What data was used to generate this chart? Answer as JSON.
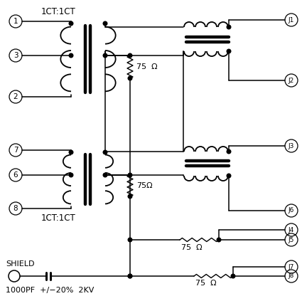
{
  "background_color": "#ffffff",
  "ct_label_top": "1CT:1CT",
  "ct_label_bottom": "1CT:1CT",
  "resistor_label": "75  Ω",
  "resistor_label2": "75Ω",
  "shield_label": "SHIELD",
  "cap_label": "1000PF  +/−20%  2KV",
  "pins_left": [
    "1",
    "3",
    "2",
    "7",
    "6",
    "8"
  ],
  "pins_right": [
    "J1",
    "J2",
    "J3",
    "J4",
    "J5",
    "J6",
    "J7",
    "J8"
  ]
}
